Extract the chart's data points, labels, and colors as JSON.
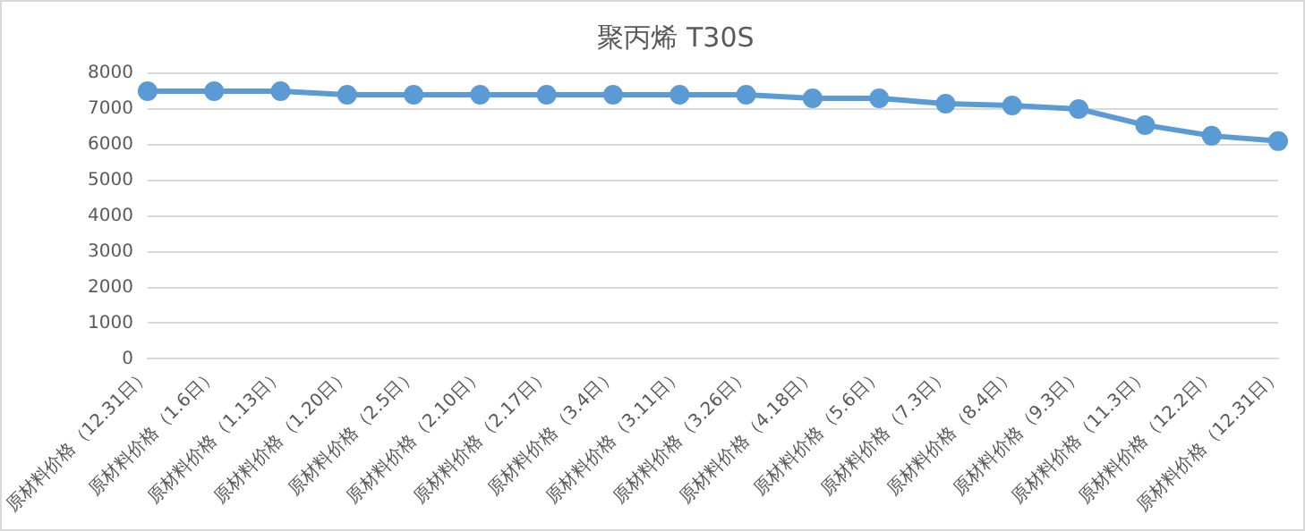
{
  "chart_data": {
    "type": "line",
    "title": "聚丙烯 T30S",
    "categories": [
      "原材料价格（12.31日）",
      "原材料价格（1.6日）",
      "原材料价格（1.13日）",
      "原材料价格（1.20日）",
      "原材料价格（2.5日）",
      "原材料价格（2.10日）",
      "原材料价格（2.17日）",
      "原材料价格（3.4日）",
      "原材料价格（3.11日）",
      "原材料价格（3.26日）",
      "原材料价格（4.18日）",
      "原材料价格（5.6日）",
      "原材料价格（7.3日）",
      "原材料价格（8.4日）",
      "原材料价格（9.3日）",
      "原材料价格（11.3日）",
      "原材料价格（12.2日）",
      "原材料价格（12.31日）"
    ],
    "series": [
      {
        "color": "#5b9bd5",
        "values": [
          7500,
          7500,
          7500,
          7400,
          7400,
          7400,
          7400,
          7400,
          7400,
          7400,
          7300,
          7300,
          7150,
          7100,
          7000,
          6550,
          6250,
          6100
        ]
      }
    ],
    "ylim": [
      0,
      8000
    ],
    "yticks": [
      0,
      1000,
      2000,
      3000,
      4000,
      5000,
      6000,
      7000,
      8000
    ],
    "grid": "y",
    "legend": false,
    "marker": "circle",
    "line_style": "solid"
  }
}
